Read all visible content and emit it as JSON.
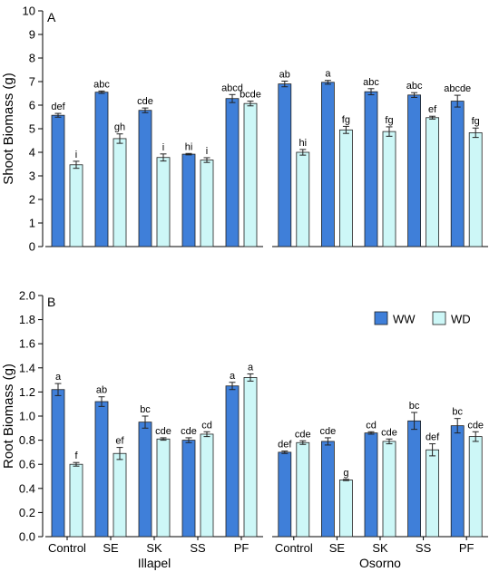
{
  "chart_data": [
    {
      "type": "bar",
      "panel_label": "A",
      "ylabel": "Shoot Biomass (g)",
      "ylim": [
        0,
        10
      ],
      "yticks": [
        "0",
        "1",
        "2",
        "3",
        "4",
        "5",
        "6",
        "7",
        "8",
        "9",
        "10"
      ],
      "groups": [
        {
          "name": "Illapel",
          "categories": [
            "Control",
            "SE",
            "SK",
            "SS",
            "PF"
          ],
          "series": [
            {
              "name": "WW",
              "values": [
                5.57,
                6.55,
                5.78,
                3.92,
                6.28
              ],
              "errors": [
                0.08,
                0.05,
                0.1,
                0.03,
                0.17
              ],
              "labels": [
                "def",
                "abc",
                "cde",
                "hi",
                "abcd"
              ]
            },
            {
              "name": "WD",
              "values": [
                3.47,
                4.58,
                3.78,
                3.67,
                6.07
              ],
              "errors": [
                0.15,
                0.2,
                0.15,
                0.1,
                0.1
              ],
              "labels": [
                "i",
                "gh",
                "i",
                "i",
                "bcde"
              ]
            }
          ]
        },
        {
          "name": "Osorno",
          "categories": [
            "Control",
            "SE",
            "SK",
            "SS",
            "PF"
          ],
          "series": [
            {
              "name": "WW",
              "values": [
                6.9,
                6.97,
                6.57,
                6.43,
                6.17
              ],
              "errors": [
                0.12,
                0.08,
                0.13,
                0.1,
                0.25
              ],
              "labels": [
                "ab",
                "a",
                "abc",
                "abc",
                "abcde"
              ]
            },
            {
              "name": "WD",
              "values": [
                4.0,
                4.95,
                4.88,
                5.47,
                4.83
              ],
              "errors": [
                0.12,
                0.15,
                0.2,
                0.06,
                0.2
              ],
              "labels": [
                "hi",
                "fg",
                "fg",
                "ef",
                "fg"
              ]
            }
          ]
        }
      ]
    },
    {
      "type": "bar",
      "panel_label": "B",
      "ylabel": "Root Biomass (g)",
      "ylim": [
        0,
        2.0
      ],
      "yticks": [
        "0.0",
        "0.2",
        "0.4",
        "0.6",
        "0.8",
        "1.0",
        "1.2",
        "1.4",
        "1.6",
        "1.8",
        "2.0"
      ],
      "legend": {
        "placement": "top-right",
        "entries": [
          "WW",
          "WD"
        ]
      },
      "groups": [
        {
          "name": "Illapel",
          "categories": [
            "Control",
            "SE",
            "SK",
            "SS",
            "PF"
          ],
          "series": [
            {
              "name": "WW",
              "values": [
                1.22,
                1.12,
                0.95,
                0.8,
                1.25
              ],
              "errors": [
                0.05,
                0.04,
                0.05,
                0.02,
                0.03
              ],
              "labels": [
                "a",
                "ab",
                "bc",
                "cde",
                "a"
              ]
            },
            {
              "name": "WD",
              "values": [
                0.6,
                0.69,
                0.81,
                0.85,
                1.32
              ],
              "errors": [
                0.015,
                0.05,
                0.01,
                0.02,
                0.03
              ],
              "labels": [
                "f",
                "ef",
                "cde",
                "cd",
                "a"
              ]
            }
          ]
        },
        {
          "name": "Osorno",
          "categories": [
            "Control",
            "SE",
            "SK",
            "SS",
            "PF"
          ],
          "series": [
            {
              "name": "WW",
              "values": [
                0.7,
                0.79,
                0.86,
                0.96,
                0.92
              ],
              "errors": [
                0.01,
                0.03,
                0.01,
                0.07,
                0.06
              ],
              "labels": [
                "def",
                "cde",
                "cd",
                "bc",
                "bc"
              ]
            },
            {
              "name": "WD",
              "values": [
                0.78,
                0.47,
                0.79,
                0.72,
                0.83
              ],
              "errors": [
                0.015,
                0.005,
                0.02,
                0.05,
                0.04
              ],
              "labels": [
                "cde",
                "g",
                "cde",
                "def",
                "cde"
              ]
            }
          ]
        }
      ]
    }
  ],
  "colors": {
    "WW": "#3f7fd9",
    "WD": "#cdf7f7",
    "bar_stroke": "#1e1e1e"
  }
}
